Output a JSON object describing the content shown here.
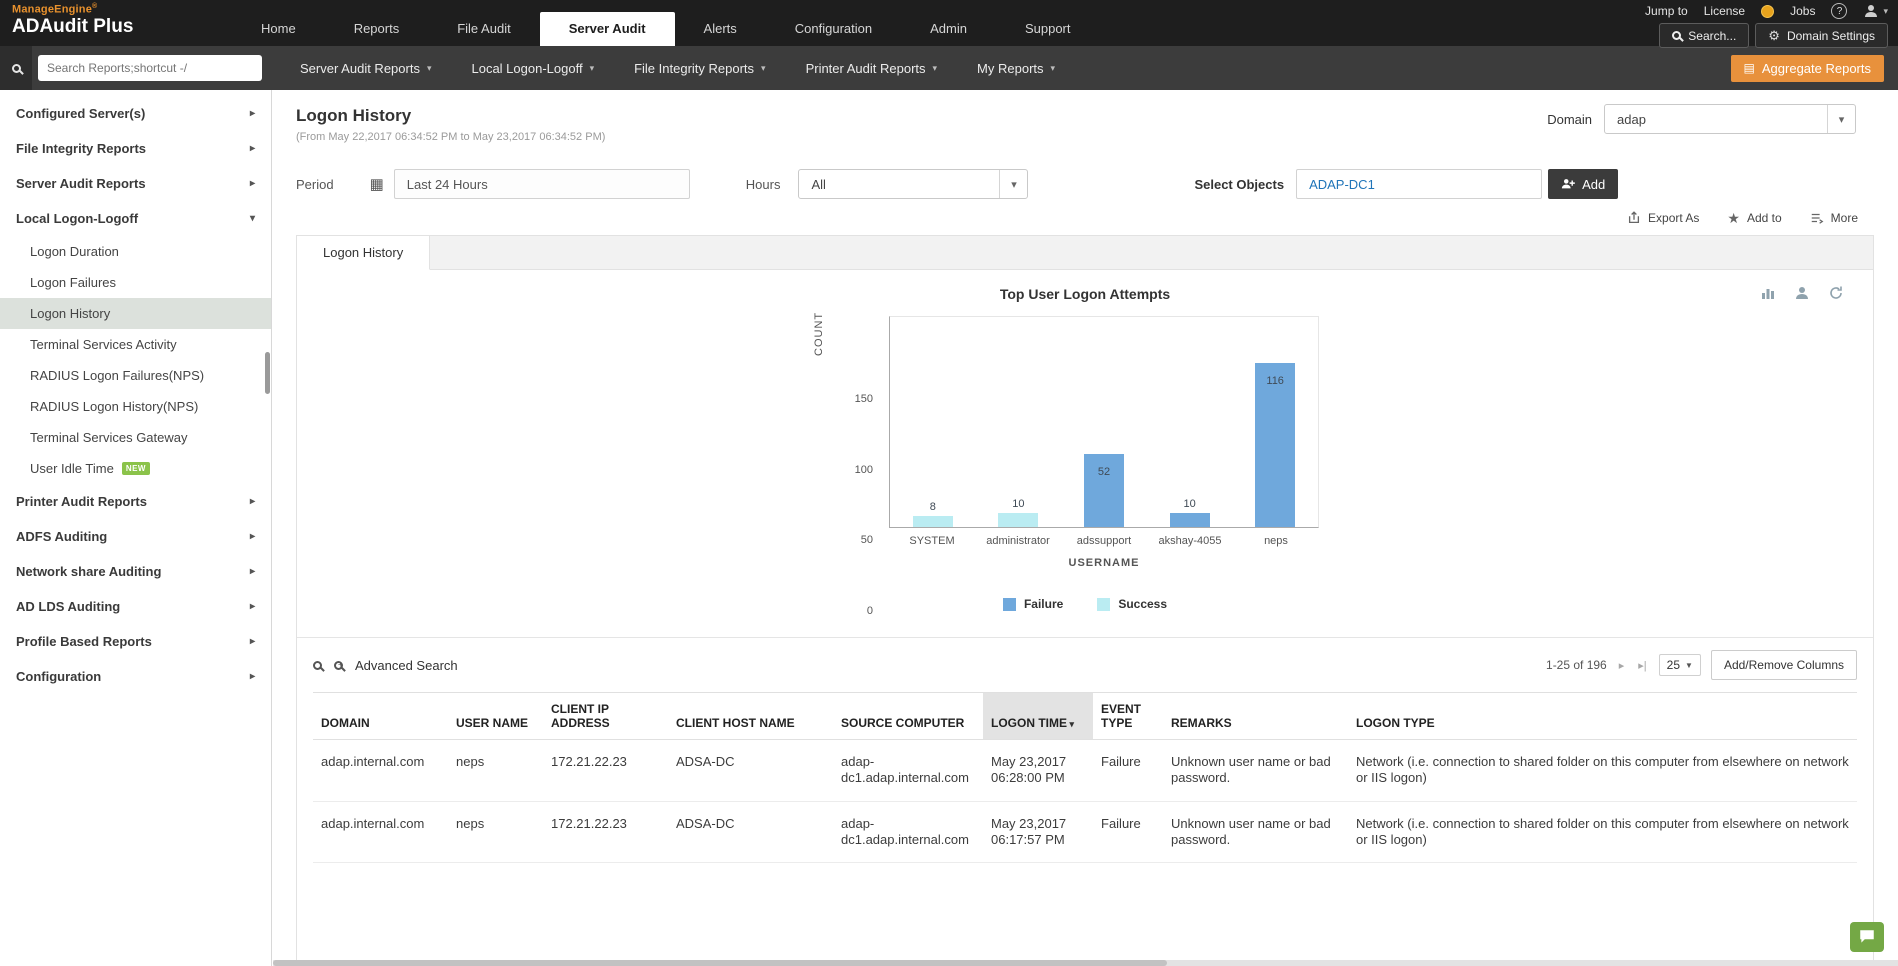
{
  "brand": {
    "vendor": "ManageEngine",
    "product": "ADAudit Plus"
  },
  "colors": {
    "accent_orange": "#e8913c",
    "failure_blue": "#6fa8dc",
    "success_cyan": "#baecf2",
    "badge_green": "#8bc34a",
    "link_blue": "#1f74b8"
  },
  "top_nav": {
    "items": [
      {
        "label": "Home",
        "active": false
      },
      {
        "label": "Reports",
        "active": false
      },
      {
        "label": "File Audit",
        "active": false
      },
      {
        "label": "Server Audit",
        "active": true
      },
      {
        "label": "Alerts",
        "active": false
      },
      {
        "label": "Configuration",
        "active": false
      },
      {
        "label": "Admin",
        "active": false
      },
      {
        "label": "Support",
        "active": false
      }
    ],
    "links": {
      "jump_to": "Jump to",
      "license": "License",
      "jobs": "Jobs",
      "help": "?"
    },
    "buttons": {
      "search": "Search...",
      "domain_settings": "Domain Settings"
    }
  },
  "report_nav": {
    "search_placeholder": "Search Reports;shortcut -/",
    "menus": [
      "Server Audit Reports",
      "Local Logon-Logoff",
      "File Integrity Reports",
      "Printer Audit Reports",
      "My Reports"
    ],
    "aggregate_reports": "Aggregate Reports"
  },
  "sidebar": {
    "items": [
      {
        "label": "Configured Server(s)",
        "expanded": false
      },
      {
        "label": "File Integrity Reports",
        "expanded": false
      },
      {
        "label": "Server Audit Reports",
        "expanded": false
      },
      {
        "label": "Local Logon-Logoff",
        "expanded": true,
        "children": [
          {
            "label": "Logon Duration",
            "selected": false
          },
          {
            "label": "Logon Failures",
            "selected": false
          },
          {
            "label": "Logon History",
            "selected": true
          },
          {
            "label": "Terminal Services Activity",
            "selected": false
          },
          {
            "label": "RADIUS Logon Failures(NPS)",
            "selected": false
          },
          {
            "label": "RADIUS Logon History(NPS)",
            "selected": false
          },
          {
            "label": "Terminal Services Gateway",
            "selected": false
          },
          {
            "label": "User Idle Time",
            "selected": false,
            "badge": "NEW"
          }
        ]
      },
      {
        "label": "Printer Audit Reports",
        "expanded": false
      },
      {
        "label": "ADFS Auditing",
        "expanded": false
      },
      {
        "label": "Network share Auditing",
        "expanded": false
      },
      {
        "label": "AD LDS Auditing",
        "expanded": false
      },
      {
        "label": "Profile Based Reports",
        "expanded": false
      },
      {
        "label": "Configuration",
        "expanded": false
      }
    ]
  },
  "page": {
    "title": "Logon History",
    "subtitle": "(From May 22,2017 06:34:52 PM to May 23,2017 06:34:52 PM)",
    "domain_label": "Domain",
    "domain_value": "adap"
  },
  "filters": {
    "period_label": "Period",
    "period_value": "Last 24 Hours",
    "hours_label": "Hours",
    "hours_value": "All",
    "select_objects_label": "Select Objects",
    "select_objects_value": "ADAP-DC1",
    "add_button": "Add"
  },
  "actions": {
    "export_as": "Export As",
    "add_to": "Add to",
    "more": "More"
  },
  "tabs": {
    "active": "Logon History"
  },
  "chart_data": {
    "type": "bar",
    "title": "Top User Logon Attempts",
    "xlabel": "USERNAME",
    "ylabel": "COUNT",
    "ylim": [
      0,
      150
    ],
    "yticks": [
      0,
      50,
      100,
      150
    ],
    "grid": false,
    "legend_position": "bottom",
    "categories": [
      "SYSTEM",
      "administrator",
      "adssupport",
      "akshay-4055",
      "neps"
    ],
    "series": [
      {
        "name": "Failure",
        "color": "#6fa8dc",
        "values": [
          0,
          0,
          52,
          10,
          116
        ]
      },
      {
        "name": "Success",
        "color": "#baecf2",
        "values": [
          8,
          10,
          0,
          0,
          0
        ]
      }
    ]
  },
  "table": {
    "advanced_search": "Advanced Search",
    "pagination": "1-25 of 196",
    "page_size": "25",
    "add_remove_columns": "Add/Remove Columns",
    "sorted_index": 5,
    "columns": [
      "DOMAIN",
      "USER NAME",
      "CLIENT IP ADDRESS",
      "CLIENT HOST NAME",
      "SOURCE COMPUTER",
      "LOGON TIME",
      "EVENT TYPE",
      "REMARKS",
      "LOGON TYPE"
    ],
    "rows": [
      [
        "adap.internal.com",
        "neps",
        "172.21.22.23",
        "ADSA-DC",
        "adap-dc1.adap.internal.com",
        "May 23,2017 06:28:00 PM",
        "Failure",
        "Unknown user name or bad password.",
        "Network (i.e. connection to shared folder on this computer from elsewhere on network or IIS logon)"
      ],
      [
        "adap.internal.com",
        "neps",
        "172.21.22.23",
        "ADSA-DC",
        "adap-dc1.adap.internal.com",
        "May 23,2017 06:17:57 PM",
        "Failure",
        "Unknown user name or bad password.",
        "Network (i.e. connection to shared folder on this computer from elsewhere on network or IIS logon)"
      ]
    ]
  }
}
